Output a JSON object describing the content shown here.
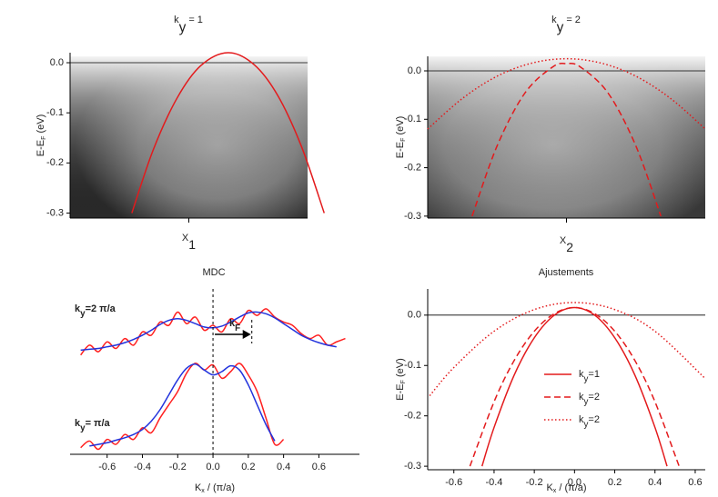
{
  "chart_data": [
    {
      "type": "line",
      "title": [
        "k",
        "y",
        " = 1"
      ],
      "xlabel": [
        "X",
        "1"
      ],
      "ylabel": [
        "E-E",
        "F",
        " (eV)"
      ],
      "xlim": [
        -1,
        1
      ],
      "ylim": [
        -0.31,
        0.02
      ],
      "yticks": [
        {
          "value": 0,
          "label": "0.0"
        },
        -0.1,
        -0.2,
        -0.3
      ],
      "hline": 0,
      "series": [
        {
          "color": "#e31a1c",
          "dash": "solid",
          "x": [
            -0.48,
            -0.3,
            -0.1,
            0.1,
            0.33,
            0.55,
            0.75,
            0.95,
            1.14
          ],
          "values": [
            -0.3,
            -0.174,
            -0.071,
            -0.006,
            0.02,
            -0.004,
            -0.066,
            -0.168,
            -0.3
          ]
        }
      ]
    },
    {
      "type": "line",
      "title": [
        "k",
        "y",
        " = 2"
      ],
      "xlabel": [
        "X",
        "2"
      ],
      "ylabel": [
        "E-E",
        "F",
        " (eV)"
      ],
      "xlim": [
        -1,
        1
      ],
      "ylim": [
        -0.304,
        0.03
      ],
      "yticks": [
        {
          "value": 0,
          "label": "0.0"
        },
        -0.1,
        -0.2,
        -0.3
      ],
      "hline": 0,
      "series": [
        {
          "color": "#e31a1c",
          "dash": "dashed",
          "x": [
            -0.68,
            -0.5,
            -0.3,
            -0.1,
            0,
            0.1,
            0.3,
            0.5,
            0.68
          ],
          "values": [
            -0.3,
            -0.155,
            -0.046,
            0.008,
            0.015,
            0.008,
            -0.046,
            -0.155,
            -0.3
          ]
        },
        {
          "color": "#e31a1c",
          "dash": "dotted",
          "x": [
            -1,
            -0.75,
            -0.5,
            -0.25,
            0,
            0.25,
            0.5,
            0.75,
            1
          ],
          "values": [
            -0.12,
            -0.057,
            -0.011,
            0.016,
            0.025,
            0.016,
            -0.011,
            -0.057,
            -0.12
          ]
        }
      ]
    },
    {
      "type": "line",
      "title": "MDC",
      "xlabel": [
        "K",
        "x",
        " / (π/a)"
      ],
      "xlim": [
        -0.81,
        0.83
      ],
      "ylim": [
        0,
        1
      ],
      "xticks": [
        -0.6,
        -0.4,
        -0.2,
        {
          "value": 0,
          "label": "0.0"
        },
        0.2,
        0.4,
        0.6
      ],
      "vlines": [
        0,
        0.22
      ],
      "annotations": [
        [
          "k",
          "y",
          "=2 π/a"
        ],
        [
          "k",
          "y",
          "= π/a"
        ],
        [
          "k",
          "F"
        ]
      ],
      "series": [
        {
          "color": "#ff2020",
          "dash": "solid",
          "x": [
            -0.75,
            -0.7,
            -0.65,
            -0.6,
            -0.55,
            -0.5,
            -0.45,
            -0.4,
            -0.35,
            -0.3,
            -0.25,
            -0.2,
            -0.15,
            -0.1,
            -0.05,
            0,
            0.05,
            0.1,
            0.15,
            0.2,
            0.25,
            0.3,
            0.35,
            0.4,
            0.45,
            0.5,
            0.55,
            0.6,
            0.65,
            0.7,
            0.75
          ],
          "values": [
            0.6,
            0.66,
            0.62,
            0.68,
            0.64,
            0.7,
            0.66,
            0.74,
            0.72,
            0.8,
            0.78,
            0.86,
            0.79,
            0.83,
            0.75,
            0.78,
            0.74,
            0.82,
            0.79,
            0.87,
            0.84,
            0.88,
            0.83,
            0.8,
            0.78,
            0.73,
            0.7,
            0.72,
            0.66,
            0.68,
            0.7
          ]
        },
        {
          "color": "#2233dd",
          "dash": "solid",
          "x": [
            -0.75,
            -0.7,
            -0.65,
            -0.6,
            -0.55,
            -0.5,
            -0.45,
            -0.4,
            -0.35,
            -0.3,
            -0.25,
            -0.2,
            -0.15,
            -0.1,
            -0.05,
            0,
            0.05,
            0.1,
            0.15,
            0.2,
            0.25,
            0.3,
            0.35,
            0.4,
            0.45,
            0.5,
            0.55,
            0.6,
            0.65,
            0.7
          ],
          "values": [
            0.63,
            0.635,
            0.64,
            0.65,
            0.66,
            0.675,
            0.695,
            0.72,
            0.75,
            0.785,
            0.81,
            0.82,
            0.81,
            0.79,
            0.77,
            0.765,
            0.775,
            0.8,
            0.83,
            0.855,
            0.86,
            0.85,
            0.825,
            0.79,
            0.755,
            0.72,
            0.695,
            0.675,
            0.66,
            0.65
          ]
        },
        {
          "color": "#ff2020",
          "dash": "solid",
          "x": [
            -0.75,
            -0.7,
            -0.65,
            -0.6,
            -0.55,
            -0.5,
            -0.45,
            -0.4,
            -0.35,
            -0.3,
            -0.25,
            -0.2,
            -0.15,
            -0.1,
            -0.05,
            0,
            0.05,
            0.1,
            0.15,
            0.2,
            0.25,
            0.3,
            0.35,
            0.4
          ],
          "values": [
            0.04,
            0.08,
            0.03,
            0.09,
            0.06,
            0.12,
            0.09,
            0.16,
            0.13,
            0.22,
            0.3,
            0.38,
            0.49,
            0.55,
            0.51,
            0.54,
            0.46,
            0.5,
            0.55,
            0.48,
            0.38,
            0.22,
            0.06,
            0.09
          ]
        },
        {
          "color": "#2233dd",
          "dash": "solid",
          "x": [
            -0.7,
            -0.65,
            -0.6,
            -0.55,
            -0.5,
            -0.45,
            -0.4,
            -0.35,
            -0.3,
            -0.25,
            -0.2,
            -0.15,
            -0.1,
            -0.05,
            0,
            0.05,
            0.1,
            0.15,
            0.2,
            0.25,
            0.3,
            0.35
          ],
          "values": [
            0.05,
            0.06,
            0.07,
            0.085,
            0.1,
            0.12,
            0.15,
            0.2,
            0.27,
            0.36,
            0.45,
            0.52,
            0.545,
            0.51,
            0.48,
            0.5,
            0.535,
            0.51,
            0.42,
            0.3,
            0.18,
            0.08
          ]
        }
      ]
    },
    {
      "type": "line",
      "title": "Ajustements",
      "xlabel": [
        "K",
        "x",
        " / (π/a)"
      ],
      "ylabel": [
        "E-E",
        "F",
        " (eV)"
      ],
      "xlim": [
        -0.73,
        0.65
      ],
      "ylim": [
        -0.307,
        0.052
      ],
      "xticks": [
        -0.6,
        -0.4,
        -0.2,
        {
          "value": 0,
          "label": "0.0"
        },
        0.2,
        0.4,
        0.6
      ],
      "yticks": [
        {
          "value": 0,
          "label": "0.0"
        },
        -0.1,
        -0.2,
        -0.3
      ],
      "hline": 0,
      "series": [
        {
          "name": [
            "k",
            "y",
            "=1"
          ],
          "color": "#e31a1c",
          "dash": "solid",
          "x": [
            -0.46,
            -0.4,
            -0.3,
            -0.2,
            -0.1,
            0,
            0.1,
            0.2,
            0.3,
            0.4,
            0.46
          ],
          "values": [
            -0.3,
            -0.223,
            -0.119,
            -0.045,
            0,
            0.015,
            0,
            -0.045,
            -0.119,
            -0.223,
            -0.3
          ]
        },
        {
          "name": [
            "k",
            "y",
            "=2"
          ],
          "color": "#e31a1c",
          "dash": "dashed",
          "x": [
            -0.52,
            -0.4,
            -0.3,
            -0.2,
            -0.1,
            0,
            0.1,
            0.2,
            0.3,
            0.4,
            0.52
          ],
          "values": [
            -0.3,
            -0.172,
            -0.09,
            -0.032,
            0.003,
            0.015,
            0.003,
            -0.032,
            -0.09,
            -0.172,
            -0.3
          ]
        },
        {
          "name": [
            "k",
            "y",
            "=2"
          ],
          "color": "#e31a1c",
          "dash": "dotted",
          "x": [
            -0.72,
            -0.6,
            -0.4,
            -0.2,
            0,
            0.2,
            0.4,
            0.65
          ],
          "values": [
            -0.16,
            -0.104,
            -0.032,
            0.011,
            0.025,
            0.011,
            -0.032,
            -0.126
          ]
        }
      ]
    }
  ]
}
